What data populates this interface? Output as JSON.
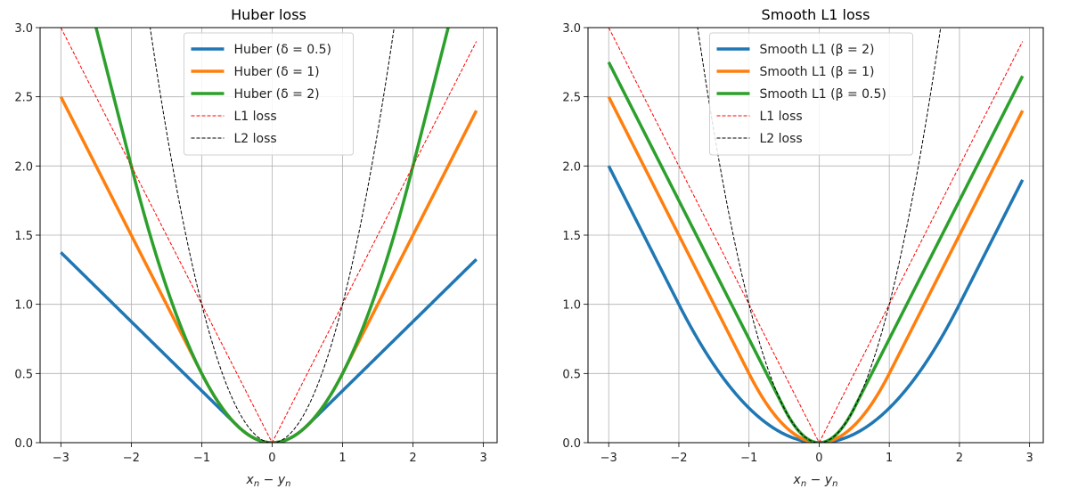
{
  "chart_data": [
    {
      "type": "line",
      "title": "Huber loss",
      "xlabel": "x_n − y_n",
      "xlabel_parts": {
        "a": "x",
        "a_sub": "n",
        "op": " − ",
        "b": "y",
        "b_sub": "n"
      },
      "ylabel": "",
      "xlim": [
        -3.295,
        3.195
      ],
      "ylim": [
        0,
        3
      ],
      "x_domain": [
        -3,
        2.9
      ],
      "xticks": [
        "−3",
        "−2",
        "−1",
        "0",
        "1",
        "2",
        "3"
      ],
      "xtick_values": [
        -3,
        -2,
        -1,
        0,
        1,
        2,
        3
      ],
      "yticks": [
        "0.0",
        "0.5",
        "1.0",
        "1.5",
        "2.0",
        "2.5",
        "3.0"
      ],
      "ytick_values": [
        0,
        0.5,
        1,
        1.5,
        2,
        2.5,
        3
      ],
      "grid": true,
      "legend_position": "top-center",
      "series": [
        {
          "name": "Huber (δ = 0.5)",
          "loss": "huber",
          "param": 0.5,
          "color": "#1f77b4",
          "style": "solid"
        },
        {
          "name": "Huber (δ = 1)",
          "loss": "huber",
          "param": 1,
          "color": "#ff7f0e",
          "style": "solid"
        },
        {
          "name": "Huber (δ = 2)",
          "loss": "huber",
          "param": 2,
          "color": "#2ca02c",
          "style": "solid"
        },
        {
          "name": "L1 loss",
          "loss": "l1",
          "color": "#ff0000",
          "style": "dashed"
        },
        {
          "name": "L2 loss",
          "loss": "l2",
          "color": "#000000",
          "style": "dashed"
        }
      ]
    },
    {
      "type": "line",
      "title": "Smooth L1 loss",
      "xlabel": "x_n − y_n",
      "xlabel_parts": {
        "a": "x",
        "a_sub": "n",
        "op": " − ",
        "b": "y",
        "b_sub": "n"
      },
      "ylabel": "",
      "xlim": [
        -3.295,
        3.195
      ],
      "ylim": [
        0,
        3
      ],
      "x_domain": [
        -3,
        2.9
      ],
      "xticks": [
        "−3",
        "−2",
        "−1",
        "0",
        "1",
        "2",
        "3"
      ],
      "xtick_values": [
        -3,
        -2,
        -1,
        0,
        1,
        2,
        3
      ],
      "yticks": [
        "0.0",
        "0.5",
        "1.0",
        "1.5",
        "2.0",
        "2.5",
        "3.0"
      ],
      "ytick_values": [
        0,
        0.5,
        1,
        1.5,
        2,
        2.5,
        3
      ],
      "grid": true,
      "legend_position": "top-center",
      "series": [
        {
          "name": "Smooth L1 (β = 2)",
          "loss": "smoothl1",
          "param": 2,
          "color": "#1f77b4",
          "style": "solid"
        },
        {
          "name": "Smooth L1 (β = 1)",
          "loss": "smoothl1",
          "param": 1,
          "color": "#ff7f0e",
          "style": "solid"
        },
        {
          "name": "Smooth L1 (β = 0.5)",
          "loss": "smoothl1",
          "param": 0.5,
          "color": "#2ca02c",
          "style": "solid"
        },
        {
          "name": "L1 loss",
          "loss": "l1",
          "color": "#ff0000",
          "style": "dashed"
        },
        {
          "name": "L2 loss",
          "loss": "l2",
          "color": "#000000",
          "style": "dashed"
        }
      ]
    }
  ]
}
